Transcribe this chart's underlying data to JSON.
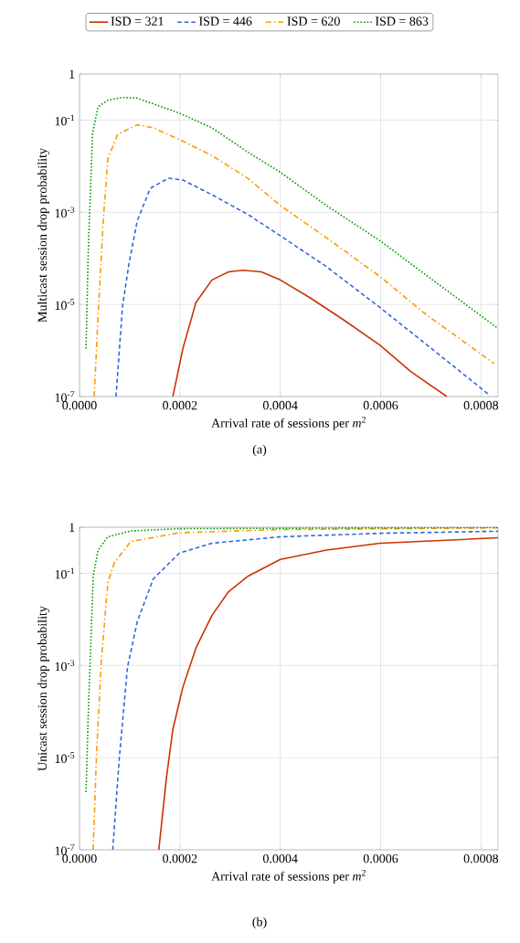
{
  "chart_data": [
    {
      "type": "line",
      "xlabel": "Arrival rate of sessions per *m*$^{2}$",
      "ylabel": "Multicast session drop probability",
      "log": "y",
      "grid": true,
      "legend": "top",
      "annotations": [
        "(a)"
      ],
      "xlim": [
        0,
        0.000834
      ],
      "ylim": [
        1e-07,
        1
      ],
      "xticks": [
        {
          "value": 0,
          "label": "0.0000"
        },
        {
          "value": 0.0002,
          "label": "0.0002"
        },
        {
          "value": 0.0004,
          "label": "0.0004"
        },
        {
          "value": 0.0006,
          "label": "0.0006"
        },
        {
          "value": 0.0008,
          "label": "0.0008"
        }
      ],
      "yticks": [
        1,
        {
          "value": 0.1,
          "label": "10$^{-1}$"
        },
        {
          "value": 0.001,
          "label": "10$^{-3}$"
        },
        {
          "value": 1e-05,
          "label": "10$^{-5}$"
        },
        {
          "value": 1e-07,
          "label": "10$^{-7}$"
        }
      ],
      "series": [
        {
          "name": "ISD = 321",
          "color": "#cc3300",
          "line_style": "solid",
          "x": [
            0.000186,
            0.000206,
            0.000232,
            0.000264,
            0.000297,
            0.000326,
            0.000362,
            0.0004,
            0.000459,
            0.000524,
            0.000599,
            0.00066,
            0.000732
          ],
          "values": [
            1e-07,
            1.1e-06,
            1.1e-05,
            3.4e-05,
            5.1e-05,
            5.5e-05,
            5.1e-05,
            3.4e-05,
            1.4e-05,
            4.8e-06,
            1.3e-06,
            3.5e-07,
            1e-07
          ]
        },
        {
          "name": "ISD = 446",
          "color": "#3366dd",
          "line_style": "dashed",
          "x": [
            7.27e-05,
            8.57e-05,
            9.87e-05,
            0.000115,
            0.000141,
            0.000177,
            0.000206,
            0.000264,
            0.000336,
            0.0004,
            0.000492,
            0.000599,
            0.000686,
            0.000816
          ],
          "values": [
            1e-07,
            9.1e-06,
            7.8e-05,
            0.00065,
            0.0033,
            0.0055,
            0.005,
            0.0024,
            0.00089,
            0.00031,
            6.6e-05,
            8.5e-06,
            1.5e-06,
            1.1e-07
          ]
        },
        {
          "name": "ISD = 620",
          "color": "#ff9900",
          "line_style": "dashdot",
          "x": [
            2.92e-05,
            3.7e-05,
            4.68e-05,
            5.65e-05,
            7.6e-05,
            0.000115,
            0.000147,
            0.000199,
            0.000264,
            0.000336,
            0.0004,
            0.000492,
            0.000599,
            0.000686,
            0.000826
          ],
          "values": [
            1e-07,
            5.6e-06,
            0.00055,
            0.0145,
            0.049,
            0.079,
            0.068,
            0.038,
            0.017,
            0.0054,
            0.0014,
            0.00028,
            4e-05,
            6.6e-06,
            5.2e-07
          ]
        },
        {
          "name": "ISD = 863",
          "color": "#009900",
          "line_style": "dotted",
          "x": [
            1.3e-05,
            1.75e-05,
            2.6e-05,
            3.7e-05,
            5.65e-05,
            8.57e-05,
            0.000115,
            0.0002,
            0.000264,
            0.000336,
            0.0004,
            0.000492,
            0.000599,
            0.000686,
            0.000834
          ],
          "values": [
            1.1e-06,
            0.00015,
            0.052,
            0.195,
            0.27,
            0.31,
            0.3,
            0.14,
            0.068,
            0.02,
            0.0074,
            0.0014,
            0.00024,
            4.7e-05,
            3e-06
          ]
        }
      ]
    },
    {
      "type": "line",
      "xlabel": "Arrival rate of sessions per *m*$^{2}$",
      "ylabel": "Unicast session drop probability",
      "log": "y",
      "grid": true,
      "annotations": [
        "(b)"
      ],
      "xlim": [
        0,
        0.000834
      ],
      "ylim": [
        1e-07,
        1
      ],
      "xticks": [
        {
          "value": 0,
          "label": "0.0000"
        },
        {
          "value": 0.0002,
          "label": "0.0002"
        },
        {
          "value": 0.0004,
          "label": "0.0004"
        },
        {
          "value": 0.0006,
          "label": "0.0006"
        },
        {
          "value": 0.0008,
          "label": "0.0008"
        }
      ],
      "yticks": [
        1,
        {
          "value": 0.1,
          "label": "10$^{-1}$"
        },
        {
          "value": 0.001,
          "label": "10$^{-3}$"
        },
        {
          "value": 1e-05,
          "label": "10$^{-5}$"
        },
        {
          "value": 1e-07,
          "label": "10$^{-7}$"
        }
      ],
      "series": [
        {
          "color": "#cc3300",
          "line_style": "solid",
          "x": [
            0.000158,
            0.000173,
            0.000186,
            0.000206,
            0.000232,
            0.000264,
            0.000297,
            0.000336,
            0.0004,
            0.000492,
            0.000599,
            0.000834
          ],
          "values": [
            1e-07,
            3.5e-06,
            4.1e-05,
            0.00034,
            0.0024,
            0.0123,
            0.04,
            0.087,
            0.2,
            0.32,
            0.45,
            0.59
          ]
        },
        {
          "color": "#3366dd",
          "line_style": "dashed",
          "x": [
            6.62e-05,
            7.92e-05,
            9.55e-05,
            0.000115,
            0.000147,
            0.000199,
            0.000264,
            0.0004,
            0.000599,
            0.000834
          ],
          "values": [
            1e-07,
            9.5e-06,
            0.00091,
            0.0089,
            0.076,
            0.275,
            0.45,
            0.62,
            0.74,
            0.82
          ]
        },
        {
          "color": "#ff9900",
          "line_style": "dashdot",
          "x": [
            2.73e-05,
            3.38e-05,
            4.35e-05,
            5.65e-05,
            6.95e-05,
            0.000102,
            0.000199,
            0.0004,
            0.000834
          ],
          "values": [
            1e-07,
            1.1e-05,
            0.00126,
            0.063,
            0.17,
            0.49,
            0.76,
            0.89,
            0.97
          ]
        },
        {
          "color": "#009900",
          "line_style": "dotted",
          "x": [
            1.3e-05,
            1.75e-05,
            2.73e-05,
            3.7e-05,
            5.65e-05,
            0.000102,
            0.000199,
            0.000834
          ],
          "values": [
            1.8e-06,
            9.1e-05,
            0.087,
            0.32,
            0.62,
            0.83,
            0.93,
            0.99
          ]
        }
      ]
    }
  ]
}
